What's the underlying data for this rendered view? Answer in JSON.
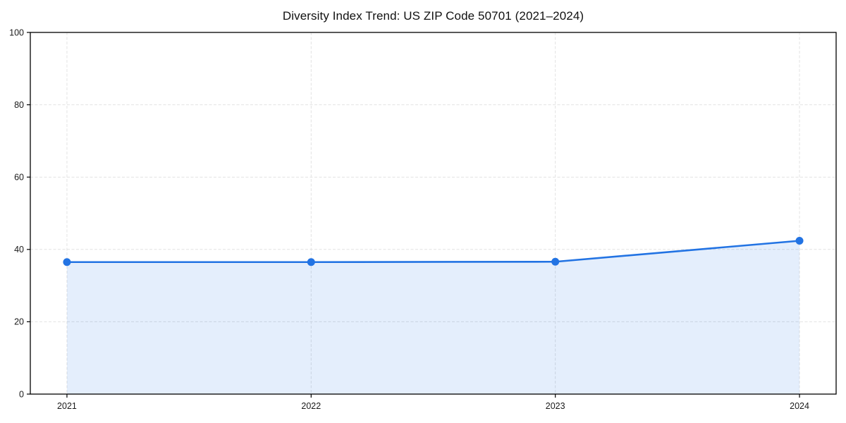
{
  "chart_data": {
    "type": "line",
    "title": "Diversity Index Trend: US ZIP Code 50701 (2021–2024)",
    "categories": [
      "2021",
      "2022",
      "2023",
      "2024"
    ],
    "series": [
      {
        "name": "Diversity Index",
        "values": [
          36.5,
          36.5,
          36.6,
          42.4
        ]
      }
    ],
    "xlabel": "",
    "ylabel": "",
    "ylim": [
      0,
      100
    ],
    "yticks": [
      0,
      20,
      40,
      60,
      80,
      100
    ],
    "grid": true,
    "grid_style": "dashed",
    "legend_position": "none",
    "area_fill": true,
    "marker": "circle",
    "colors": {
      "line": "#2273e3",
      "marker_fill": "#2273e3",
      "area_fill": "rgba(34,115,227,0.12)",
      "grid": "#e2e2e2",
      "axis": "#000000",
      "tick_label": "#1a1a1a",
      "title": "#111111",
      "background": "#ffffff"
    }
  }
}
